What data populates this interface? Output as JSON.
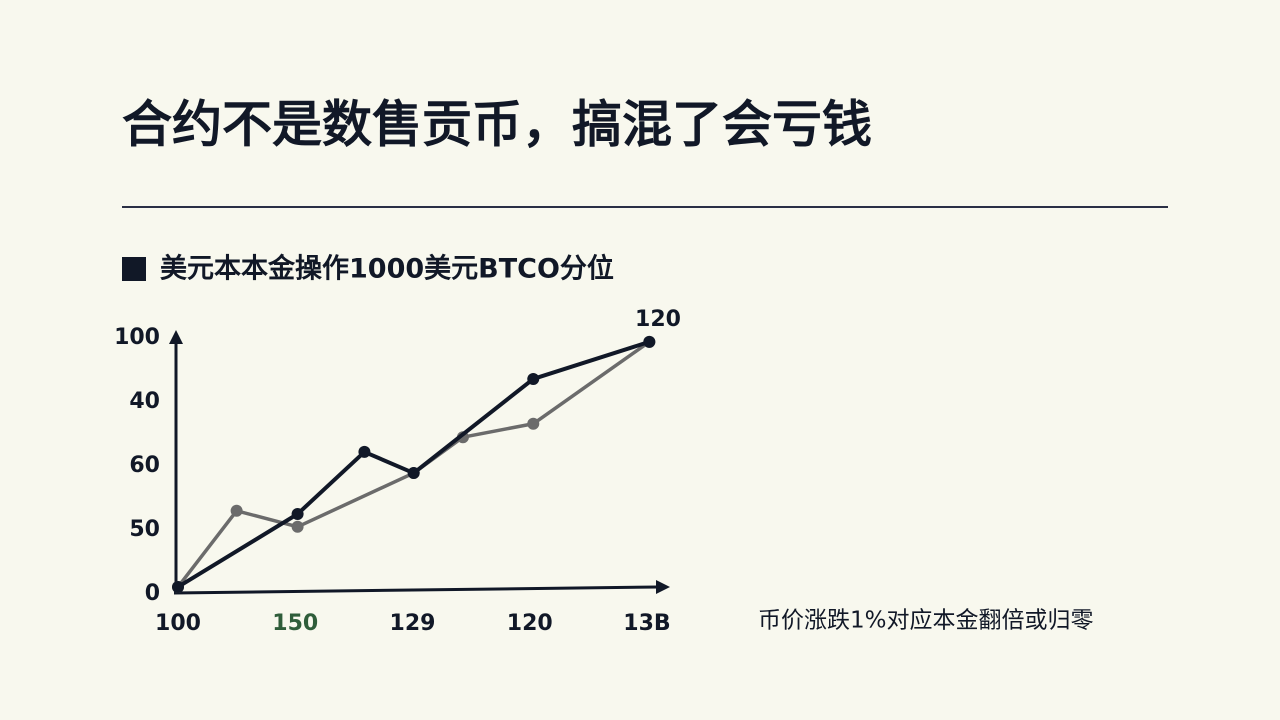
{
  "chart_data": {
    "type": "line",
    "title": "合约不是数售贡币，搞混了会亏钱",
    "subtitle": "美元本本金操作1000美元BTCO分位",
    "annotation": "120",
    "note": "币价涨跌1%对应本金翻倍或归零",
    "categories": [
      "100",
      "150",
      "129",
      "120",
      "13B"
    ],
    "category_colors": [
      "#111827",
      "#2f5d3a",
      "#111827",
      "#111827",
      "#111827"
    ],
    "xlim": [
      0,
      4.2
    ],
    "y_categories": [
      "0",
      "50",
      "60",
      "40",
      "100"
    ],
    "ylim": [
      0,
      4.1
    ],
    "series": [
      {
        "color": "#111827",
        "x": [
          0,
          1.02,
          1.59,
          2.01,
          3.03,
          4.02
        ],
        "values": [
          0.11,
          1.25,
          2.22,
          1.89,
          3.36,
          3.94
        ]
      },
      {
        "color": "#6b6b6b",
        "x": [
          0,
          0.5,
          1.02,
          2.01,
          2.43,
          3.03,
          4.02
        ],
        "values": [
          0.11,
          1.3,
          1.05,
          1.89,
          2.45,
          2.66,
          3.94
        ]
      }
    ]
  }
}
